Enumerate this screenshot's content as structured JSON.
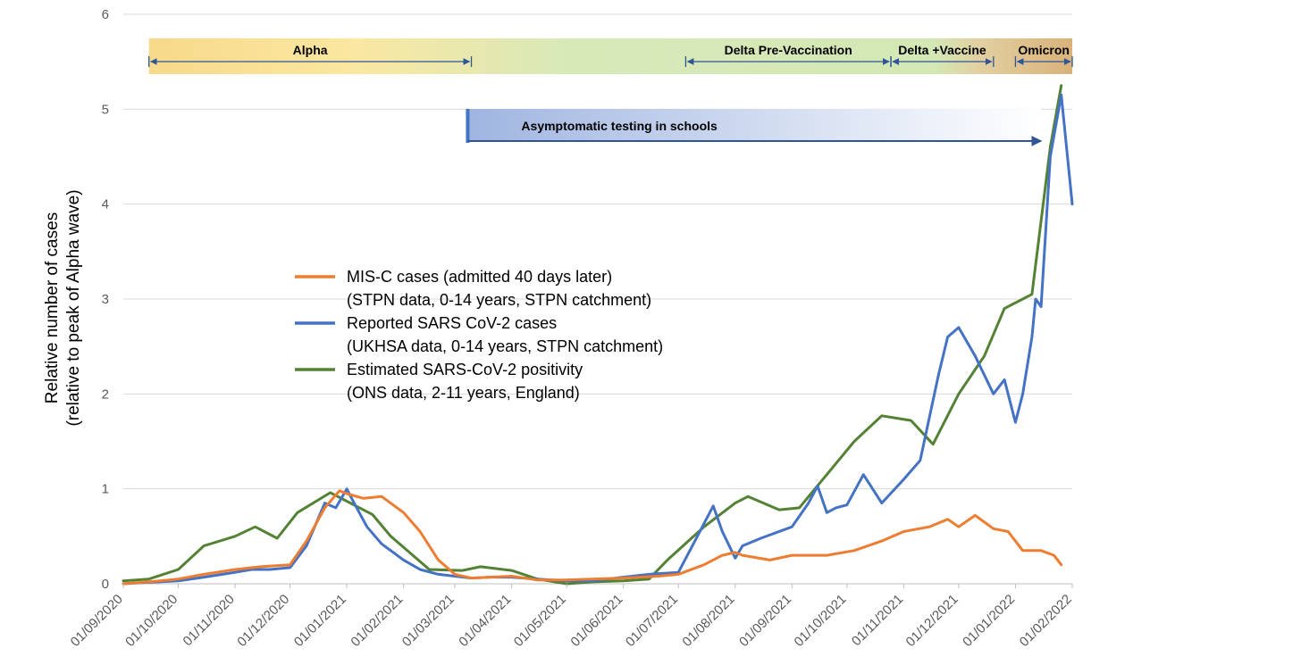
{
  "chart_data": {
    "type": "line",
    "title": "",
    "xlabel": "",
    "ylabel": [
      "Relative number of cases",
      "(relative to peak of Alpha wave)"
    ],
    "ylim": [
      0,
      6
    ],
    "yticks": [
      "0",
      "1",
      "2",
      "3",
      "4",
      "5",
      "6"
    ],
    "xlim": [
      "01/09/2020",
      "01/02/2022"
    ],
    "x_tick_labels": [
      "01/09/2020",
      "01/10/2020",
      "01/11/2020",
      "01/12/2020",
      "01/01/2021",
      "01/02/2021",
      "01/03/2021",
      "01/04/2021",
      "01/05/2021",
      "01/06/2021",
      "01/07/2021",
      "01/08/2021",
      "01/09/2021",
      "01/10/2021",
      "01/11/2021",
      "01/12/2021",
      "01/01/2022",
      "01/02/2022"
    ],
    "grid": true,
    "legend_position": "center-left",
    "legend": [
      {
        "line1": "MIS-C cases (admitted 40 days later)",
        "line2": "(STPN data, 0-14 years, STPN catchment)",
        "color": "#ED7D31"
      },
      {
        "line1": "Reported SARS CoV-2 cases",
        "line2": "(UKHSA data, 0-14 years, STPN catchment)",
        "color": "#4472C4"
      },
      {
        "line1": "Estimated SARS-CoV-2 positivity",
        "line2": "(ONS data, 2-11 years, England)",
        "color": "#548235"
      }
    ],
    "phases": [
      {
        "label": "Alpha",
        "from": "15/09/2020",
        "to": "10/03/2021"
      },
      {
        "label": "Delta Pre-Vaccination",
        "from": "05/07/2021",
        "to": "25/10/2021"
      },
      {
        "label": "Delta +Vaccine",
        "from": "25/10/2021",
        "to": "20/12/2021"
      },
      {
        "label": "Omicron",
        "from": "01/01/2022",
        "to": "01/02/2022"
      }
    ],
    "annotations": [
      {
        "label": "Asymptomatic testing in schools",
        "from": "08/03/2021",
        "to": "15/01/2022"
      }
    ],
    "series": [
      {
        "color": "#548235",
        "x": [
          "01/09/2020",
          "15/09/2020",
          "01/10/2020",
          "15/10/2020",
          "01/11/2020",
          "12/11/2020",
          "24/11/2020",
          "05/12/2020",
          "23/12/2020",
          "15/01/2021",
          "25/01/2021",
          "15/02/2021",
          "05/03/2021",
          "15/03/2021",
          "01/04/2021",
          "15/04/2021",
          "01/05/2021",
          "15/05/2021",
          "01/06/2021",
          "15/06/2021",
          "25/06/2021",
          "15/07/2021",
          "01/08/2021",
          "08/08/2021",
          "25/08/2021",
          "05/09/2021",
          "20/09/2021",
          "05/10/2021",
          "20/10/2021",
          "05/11/2021",
          "17/11/2021",
          "01/12/2021",
          "15/12/2021",
          "26/12/2021",
          "10/01/2022",
          "20/01/2022",
          "26/01/2022"
        ],
        "values": [
          0.03,
          0.05,
          0.15,
          0.4,
          0.5,
          0.6,
          0.48,
          0.75,
          0.96,
          0.73,
          0.5,
          0.15,
          0.14,
          0.18,
          0.14,
          0.05,
          0.0,
          0.02,
          0.03,
          0.05,
          0.25,
          0.6,
          0.85,
          0.92,
          0.78,
          0.8,
          1.15,
          1.5,
          1.77,
          1.72,
          1.47,
          2.0,
          2.4,
          2.9,
          3.05,
          4.6,
          5.25
        ]
      },
      {
        "color": "#4472C4",
        "x": [
          "01/09/2020",
          "10/09/2020",
          "01/10/2020",
          "15/10/2020",
          "01/11/2020",
          "10/11/2020",
          "20/11/2020",
          "01/12/2020",
          "10/12/2020",
          "20/12/2020",
          "26/12/2020",
          "01/01/2021",
          "05/01/2021",
          "12/01/2021",
          "20/01/2021",
          "01/02/2021",
          "10/02/2021",
          "20/02/2021",
          "01/03/2021",
          "10/03/2021",
          "20/03/2021",
          "01/04/2021",
          "15/04/2021",
          "01/05/2021",
          "15/05/2021",
          "01/06/2021",
          "15/06/2021",
          "01/07/2021",
          "10/07/2021",
          "20/07/2021",
          "25/07/2021",
          "01/08/2021",
          "05/08/2021",
          "15/08/2021",
          "01/09/2021",
          "10/09/2021",
          "15/09/2021",
          "20/09/2021",
          "25/09/2021",
          "01/10/2021",
          "10/10/2021",
          "20/10/2021",
          "01/11/2021",
          "10/11/2021",
          "20/11/2021",
          "25/11/2021",
          "01/12/2021",
          "10/12/2021",
          "15/12/2021",
          "20/12/2021",
          "26/12/2021",
          "01/01/2022",
          "05/01/2022",
          "10/01/2022",
          "12/01/2022",
          "15/01/2022",
          "20/01/2022",
          "26/01/2022",
          "01/02/2022"
        ],
        "values": [
          0.0,
          0.01,
          0.03,
          0.07,
          0.12,
          0.15,
          0.15,
          0.17,
          0.4,
          0.85,
          0.8,
          1.0,
          0.85,
          0.6,
          0.42,
          0.25,
          0.15,
          0.1,
          0.08,
          0.06,
          0.07,
          0.07,
          0.05,
          0.03,
          0.03,
          0.07,
          0.1,
          0.12,
          0.45,
          0.82,
          0.55,
          0.27,
          0.4,
          0.48,
          0.6,
          0.85,
          1.03,
          0.75,
          0.8,
          0.83,
          1.15,
          0.85,
          1.1,
          1.3,
          2.2,
          2.6,
          2.7,
          2.4,
          2.2,
          2.0,
          2.15,
          1.7,
          2.0,
          2.6,
          3.0,
          2.92,
          4.5,
          5.15,
          4.0
        ]
      },
      {
        "color": "#ED7D31",
        "x": [
          "01/09/2020",
          "15/09/2020",
          "01/10/2020",
          "15/10/2020",
          "01/11/2020",
          "15/11/2020",
          "01/12/2020",
          "10/12/2020",
          "20/12/2020",
          "28/12/2020",
          "01/01/2021",
          "10/01/2021",
          "20/01/2021",
          "01/02/2021",
          "10/02/2021",
          "20/02/2021",
          "01/03/2021",
          "10/03/2021",
          "01/04/2021",
          "15/04/2021",
          "01/05/2021",
          "01/06/2021",
          "20/06/2021",
          "01/07/2021",
          "15/07/2021",
          "25/07/2021",
          "01/08/2021",
          "05/08/2021",
          "20/08/2021",
          "01/09/2021",
          "20/09/2021",
          "05/10/2021",
          "20/10/2021",
          "01/11/2021",
          "15/11/2021",
          "25/11/2021",
          "01/12/2021",
          "10/12/2021",
          "20/12/2021",
          "28/12/2021",
          "05/01/2022",
          "15/01/2022",
          "22/01/2022",
          "26/01/2022"
        ],
        "values": [
          0.0,
          0.02,
          0.05,
          0.1,
          0.15,
          0.18,
          0.2,
          0.45,
          0.8,
          0.98,
          0.95,
          0.9,
          0.92,
          0.75,
          0.55,
          0.25,
          0.1,
          0.06,
          0.08,
          0.04,
          0.04,
          0.06,
          0.08,
          0.1,
          0.2,
          0.3,
          0.33,
          0.3,
          0.25,
          0.3,
          0.3,
          0.35,
          0.45,
          0.55,
          0.6,
          0.68,
          0.6,
          0.72,
          0.58,
          0.55,
          0.35,
          0.35,
          0.3,
          0.2
        ]
      }
    ]
  }
}
